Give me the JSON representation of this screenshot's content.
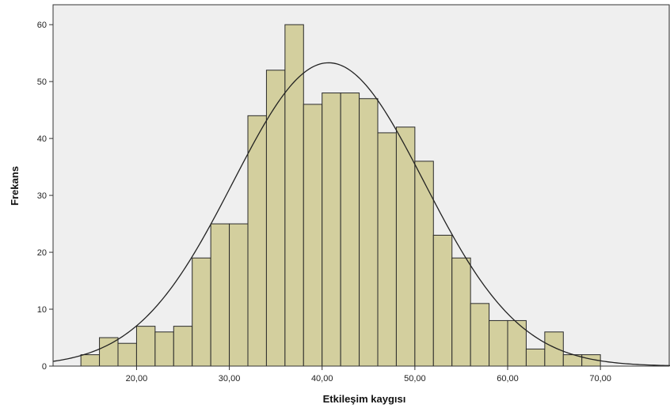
{
  "chart_data": {
    "type": "bar",
    "title": "",
    "xlabel": "Etkileşim kaygısı",
    "ylabel": "Frekans",
    "xlim": [
      11,
      77.5
    ],
    "ylim": [
      0,
      63.5
    ],
    "bin_width": 2,
    "bins": [
      {
        "x_start": 14,
        "x_end": 16,
        "value": 2
      },
      {
        "x_start": 16,
        "x_end": 18,
        "value": 5
      },
      {
        "x_start": 18,
        "x_end": 20,
        "value": 4
      },
      {
        "x_start": 20,
        "x_end": 22,
        "value": 7
      },
      {
        "x_start": 22,
        "x_end": 24,
        "value": 6
      },
      {
        "x_start": 24,
        "x_end": 26,
        "value": 7
      },
      {
        "x_start": 26,
        "x_end": 28,
        "value": 19
      },
      {
        "x_start": 28,
        "x_end": 30,
        "value": 25
      },
      {
        "x_start": 30,
        "x_end": 32,
        "value": 25
      },
      {
        "x_start": 32,
        "x_end": 34,
        "value": 44
      },
      {
        "x_start": 34,
        "x_end": 36,
        "value": 52
      },
      {
        "x_start": 36,
        "x_end": 38,
        "value": 60
      },
      {
        "x_start": 38,
        "x_end": 40,
        "value": 46
      },
      {
        "x_start": 40,
        "x_end": 42,
        "value": 48
      },
      {
        "x_start": 42,
        "x_end": 44,
        "value": 48
      },
      {
        "x_start": 44,
        "x_end": 46,
        "value": 47
      },
      {
        "x_start": 46,
        "x_end": 48,
        "value": 41
      },
      {
        "x_start": 48,
        "x_end": 50,
        "value": 42
      },
      {
        "x_start": 50,
        "x_end": 52,
        "value": 36
      },
      {
        "x_start": 52,
        "x_end": 54,
        "value": 23
      },
      {
        "x_start": 54,
        "x_end": 56,
        "value": 19
      },
      {
        "x_start": 56,
        "x_end": 58,
        "value": 11
      },
      {
        "x_start": 58,
        "x_end": 60,
        "value": 8
      },
      {
        "x_start": 60,
        "x_end": 62,
        "value": 8
      },
      {
        "x_start": 62,
        "x_end": 64,
        "value": 3
      },
      {
        "x_start": 64,
        "x_end": 66,
        "value": 6
      },
      {
        "x_start": 66,
        "x_end": 68,
        "value": 2
      },
      {
        "x_start": 68,
        "x_end": 70,
        "value": 2
      }
    ],
    "x_ticks": [
      {
        "value": 20,
        "label": "20,00"
      },
      {
        "value": 30,
        "label": "30,00"
      },
      {
        "value": 40,
        "label": "40,00"
      },
      {
        "value": 50,
        "label": "50,00"
      },
      {
        "value": 60,
        "label": "60,00"
      },
      {
        "value": 70,
        "label": "70,00"
      }
    ],
    "y_ticks": [
      {
        "value": 0,
        "label": "0"
      },
      {
        "value": 10,
        "label": "10"
      },
      {
        "value": 20,
        "label": "20"
      },
      {
        "value": 30,
        "label": "30"
      },
      {
        "value": 40,
        "label": "40"
      },
      {
        "value": 50,
        "label": "50"
      },
      {
        "value": 60,
        "label": "60"
      }
    ],
    "normal_curve": {
      "mean": 40.7,
      "sd": 10.3,
      "peak": 53.3
    },
    "grid": false,
    "legend": "none",
    "colors": {
      "bar_fill": "#d3cf9e",
      "bar_stroke": "#2a2a2a",
      "plot_background": "#efefef",
      "curve": "#222222",
      "axis": "#333333"
    }
  }
}
